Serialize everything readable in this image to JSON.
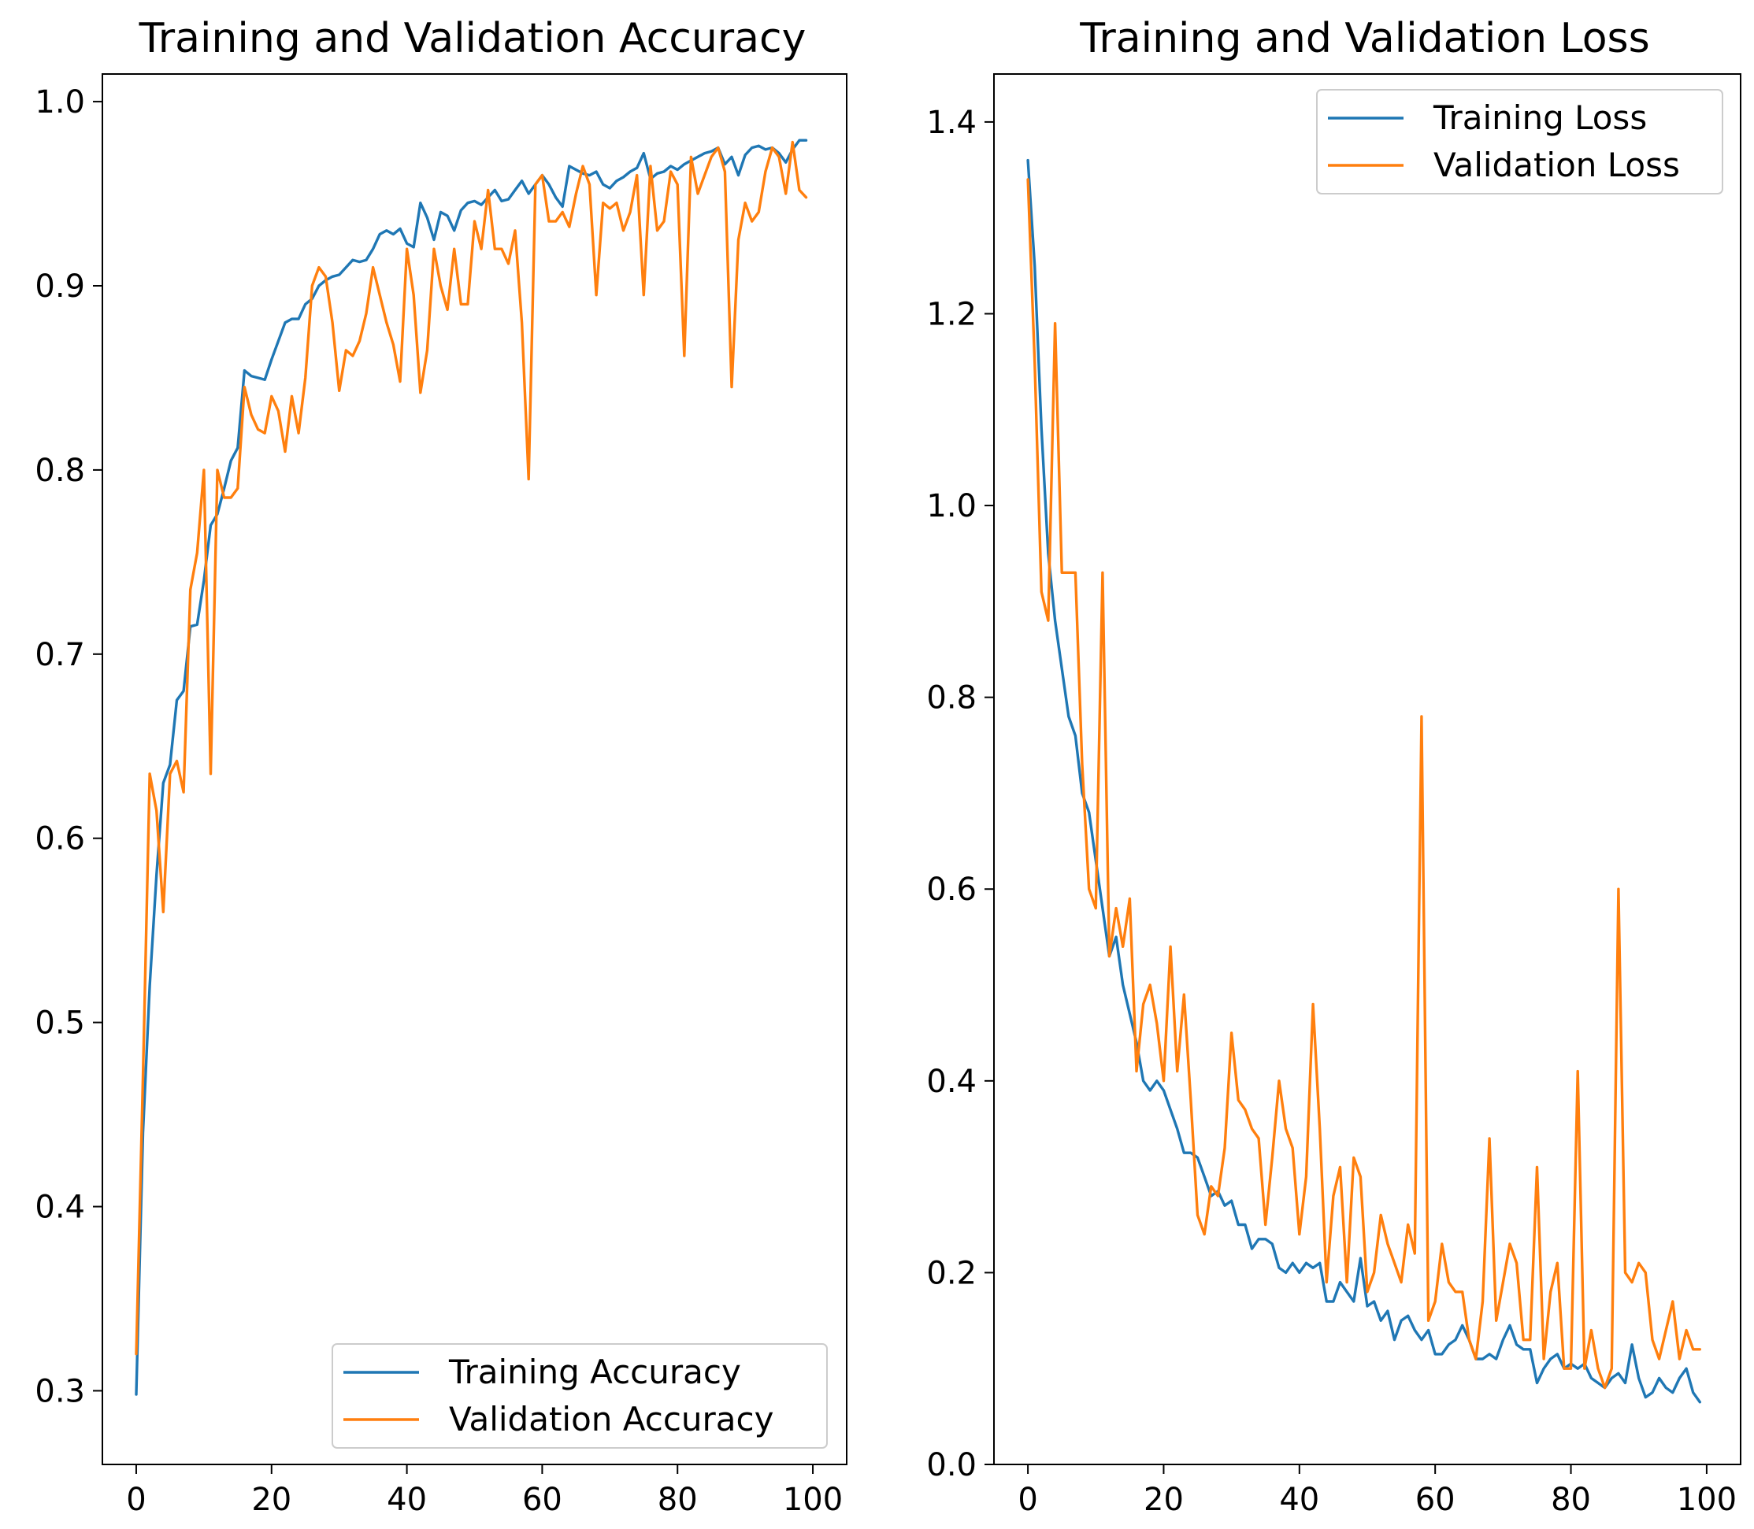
{
  "colors": {
    "training": "#1f77b4",
    "validation": "#ff7f0e"
  },
  "chart_data": [
    {
      "type": "line",
      "title": "Training and Validation Accuracy",
      "xlabel": "",
      "ylabel": "",
      "xlim": [
        -5,
        105
      ],
      "ylim": [
        0.26,
        1.015
      ],
      "xticks": [
        0,
        20,
        40,
        60,
        80,
        100
      ],
      "yticks": [
        0.3,
        0.4,
        0.5,
        0.6,
        0.7,
        0.8,
        0.9,
        1.0
      ],
      "xtick_labels": [
        "0",
        "20",
        "40",
        "60",
        "80",
        "100"
      ],
      "ytick_labels": [
        "0.3",
        "0.4",
        "0.5",
        "0.6",
        "0.7",
        "0.8",
        "0.9",
        "1.0"
      ],
      "grid": false,
      "legend_position": "lower-right",
      "series": [
        {
          "name": "Training Accuracy",
          "color": "#1f77b4",
          "x": [
            0,
            1,
            2,
            3,
            4,
            5,
            6,
            7,
            8,
            9,
            10,
            11,
            12,
            13,
            14,
            15,
            16,
            17,
            18,
            19,
            20,
            21,
            22,
            23,
            24,
            25,
            26,
            27,
            28,
            29,
            30,
            31,
            32,
            33,
            34,
            35,
            36,
            37,
            38,
            39,
            40,
            41,
            42,
            43,
            44,
            45,
            46,
            47,
            48,
            49,
            50,
            51,
            52,
            53,
            54,
            55,
            56,
            57,
            58,
            59,
            60,
            61,
            62,
            63,
            64,
            65,
            66,
            67,
            68,
            69,
            70,
            71,
            72,
            73,
            74,
            75,
            76,
            77,
            78,
            79,
            80,
            81,
            82,
            83,
            84,
            85,
            86,
            87,
            88,
            89,
            90,
            91,
            92,
            93,
            94,
            95,
            96,
            97,
            98,
            99
          ],
          "y": [
            0.298,
            0.44,
            0.52,
            0.58,
            0.63,
            0.64,
            0.675,
            0.68,
            0.715,
            0.716,
            0.74,
            0.77,
            0.776,
            0.79,
            0.805,
            0.812,
            0.854,
            0.851,
            0.85,
            0.849,
            0.86,
            0.87,
            0.88,
            0.882,
            0.882,
            0.89,
            0.893,
            0.9,
            0.903,
            0.905,
            0.906,
            0.91,
            0.914,
            0.913,
            0.914,
            0.92,
            0.928,
            0.93,
            0.928,
            0.931,
            0.923,
            0.921,
            0.945,
            0.937,
            0.925,
            0.94,
            0.938,
            0.93,
            0.941,
            0.945,
            0.946,
            0.944,
            0.948,
            0.952,
            0.946,
            0.947,
            0.952,
            0.957,
            0.95,
            0.955,
            0.96,
            0.955,
            0.948,
            0.943,
            0.965,
            0.963,
            0.961,
            0.96,
            0.962,
            0.955,
            0.953,
            0.957,
            0.959,
            0.962,
            0.964,
            0.972,
            0.958,
            0.961,
            0.962,
            0.965,
            0.963,
            0.966,
            0.968,
            0.97,
            0.972,
            0.973,
            0.975,
            0.966,
            0.97,
            0.96,
            0.971,
            0.975,
            0.976,
            0.974,
            0.975,
            0.972,
            0.967,
            0.974,
            0.979,
            0.979
          ]
        },
        {
          "name": "Validation Accuracy",
          "color": "#ff7f0e",
          "x": [
            0,
            1,
            2,
            3,
            4,
            5,
            6,
            7,
            8,
            9,
            10,
            11,
            12,
            13,
            14,
            15,
            16,
            17,
            18,
            19,
            20,
            21,
            22,
            23,
            24,
            25,
            26,
            27,
            28,
            29,
            30,
            31,
            32,
            33,
            34,
            35,
            36,
            37,
            38,
            39,
            40,
            41,
            42,
            43,
            44,
            45,
            46,
            47,
            48,
            49,
            50,
            51,
            52,
            53,
            54,
            55,
            56,
            57,
            58,
            59,
            60,
            61,
            62,
            63,
            64,
            65,
            66,
            67,
            68,
            69,
            70,
            71,
            72,
            73,
            74,
            75,
            76,
            77,
            78,
            79,
            80,
            81,
            82,
            83,
            84,
            85,
            86,
            87,
            88,
            89,
            90,
            91,
            92,
            93,
            94,
            95,
            96,
            97,
            98,
            99
          ],
          "y": [
            0.32,
            0.47,
            0.635,
            0.615,
            0.56,
            0.635,
            0.642,
            0.625,
            0.735,
            0.755,
            0.8,
            0.635,
            0.8,
            0.785,
            0.785,
            0.79,
            0.845,
            0.83,
            0.822,
            0.82,
            0.84,
            0.832,
            0.81,
            0.84,
            0.82,
            0.85,
            0.9,
            0.91,
            0.905,
            0.88,
            0.843,
            0.865,
            0.862,
            0.87,
            0.885,
            0.91,
            0.895,
            0.88,
            0.868,
            0.848,
            0.92,
            0.895,
            0.842,
            0.865,
            0.92,
            0.9,
            0.887,
            0.92,
            0.89,
            0.89,
            0.935,
            0.92,
            0.952,
            0.92,
            0.92,
            0.912,
            0.93,
            0.88,
            0.795,
            0.955,
            0.96,
            0.935,
            0.935,
            0.94,
            0.932,
            0.95,
            0.965,
            0.955,
            0.895,
            0.945,
            0.942,
            0.945,
            0.93,
            0.94,
            0.96,
            0.895,
            0.965,
            0.93,
            0.935,
            0.962,
            0.955,
            0.862,
            0.97,
            0.95,
            0.96,
            0.97,
            0.975,
            0.962,
            0.845,
            0.925,
            0.945,
            0.935,
            0.94,
            0.962,
            0.975,
            0.97,
            0.95,
            0.978,
            0.952,
            0.948
          ]
        }
      ]
    },
    {
      "type": "line",
      "title": "Training and Validation Loss",
      "xlabel": "",
      "ylabel": "",
      "xlim": [
        -5,
        105
      ],
      "ylim": [
        0.0,
        1.45
      ],
      "xticks": [
        0,
        20,
        40,
        60,
        80,
        100
      ],
      "yticks": [
        0.0,
        0.2,
        0.4,
        0.6,
        0.8,
        1.0,
        1.2,
        1.4
      ],
      "xtick_labels": [
        "0",
        "20",
        "40",
        "60",
        "80",
        "100"
      ],
      "ytick_labels": [
        "0.0",
        "0.2",
        "0.4",
        "0.6",
        "0.8",
        "1.0",
        "1.2",
        "1.4"
      ],
      "grid": false,
      "legend_position": "upper-right",
      "series": [
        {
          "name": "Training Loss",
          "color": "#1f77b4",
          "x": [
            0,
            1,
            2,
            3,
            4,
            5,
            6,
            7,
            8,
            9,
            10,
            11,
            12,
            13,
            14,
            15,
            16,
            17,
            18,
            19,
            20,
            21,
            22,
            23,
            24,
            25,
            26,
            27,
            28,
            29,
            30,
            31,
            32,
            33,
            34,
            35,
            36,
            37,
            38,
            39,
            40,
            41,
            42,
            43,
            44,
            45,
            46,
            47,
            48,
            49,
            50,
            51,
            52,
            53,
            54,
            55,
            56,
            57,
            58,
            59,
            60,
            61,
            62,
            63,
            64,
            65,
            66,
            67,
            68,
            69,
            70,
            71,
            72,
            73,
            74,
            75,
            76,
            77,
            78,
            79,
            80,
            81,
            82,
            83,
            84,
            85,
            86,
            87,
            88,
            89,
            90,
            91,
            92,
            93,
            94,
            95,
            96,
            97,
            98,
            99
          ],
          "y": [
            1.36,
            1.25,
            1.08,
            0.95,
            0.88,
            0.83,
            0.78,
            0.76,
            0.7,
            0.68,
            0.63,
            0.58,
            0.53,
            0.55,
            0.5,
            0.47,
            0.44,
            0.4,
            0.39,
            0.4,
            0.39,
            0.37,
            0.35,
            0.325,
            0.325,
            0.32,
            0.3,
            0.28,
            0.285,
            0.27,
            0.275,
            0.25,
            0.25,
            0.225,
            0.235,
            0.235,
            0.23,
            0.205,
            0.2,
            0.21,
            0.2,
            0.21,
            0.205,
            0.21,
            0.17,
            0.17,
            0.19,
            0.18,
            0.17,
            0.215,
            0.165,
            0.17,
            0.15,
            0.16,
            0.13,
            0.15,
            0.155,
            0.14,
            0.13,
            0.14,
            0.115,
            0.115,
            0.125,
            0.13,
            0.145,
            0.13,
            0.11,
            0.11,
            0.115,
            0.11,
            0.13,
            0.145,
            0.125,
            0.12,
            0.12,
            0.085,
            0.1,
            0.11,
            0.115,
            0.1,
            0.105,
            0.1,
            0.105,
            0.09,
            0.085,
            0.08,
            0.09,
            0.095,
            0.085,
            0.125,
            0.09,
            0.07,
            0.075,
            0.09,
            0.08,
            0.075,
            0.09,
            0.1,
            0.075,
            0.065
          ]
        },
        {
          "name": "Validation Loss",
          "color": "#ff7f0e",
          "x": [
            0,
            1,
            2,
            3,
            4,
            5,
            6,
            7,
            8,
            9,
            10,
            11,
            12,
            13,
            14,
            15,
            16,
            17,
            18,
            19,
            20,
            21,
            22,
            23,
            24,
            25,
            26,
            27,
            28,
            29,
            30,
            31,
            32,
            33,
            34,
            35,
            36,
            37,
            38,
            39,
            40,
            41,
            42,
            43,
            44,
            45,
            46,
            47,
            48,
            49,
            50,
            51,
            52,
            53,
            54,
            55,
            56,
            57,
            58,
            59,
            60,
            61,
            62,
            63,
            64,
            65,
            66,
            67,
            68,
            69,
            70,
            71,
            72,
            73,
            74,
            75,
            76,
            77,
            78,
            79,
            80,
            81,
            82,
            83,
            84,
            85,
            86,
            87,
            88,
            89,
            90,
            91,
            92,
            93,
            94,
            95,
            96,
            97,
            98,
            99
          ],
          "y": [
            1.34,
            1.15,
            0.91,
            0.88,
            1.19,
            0.93,
            0.93,
            0.93,
            0.73,
            0.6,
            0.58,
            0.93,
            0.53,
            0.58,
            0.54,
            0.59,
            0.41,
            0.48,
            0.5,
            0.46,
            0.4,
            0.54,
            0.41,
            0.49,
            0.38,
            0.26,
            0.24,
            0.29,
            0.28,
            0.33,
            0.45,
            0.38,
            0.37,
            0.35,
            0.34,
            0.25,
            0.32,
            0.4,
            0.35,
            0.33,
            0.24,
            0.3,
            0.48,
            0.35,
            0.19,
            0.28,
            0.31,
            0.19,
            0.32,
            0.3,
            0.18,
            0.2,
            0.26,
            0.23,
            0.21,
            0.19,
            0.25,
            0.22,
            0.78,
            0.15,
            0.17,
            0.23,
            0.19,
            0.18,
            0.18,
            0.13,
            0.11,
            0.17,
            0.34,
            0.15,
            0.19,
            0.23,
            0.21,
            0.13,
            0.13,
            0.31,
            0.11,
            0.18,
            0.21,
            0.1,
            0.1,
            0.41,
            0.1,
            0.14,
            0.1,
            0.08,
            0.1,
            0.6,
            0.2,
            0.19,
            0.21,
            0.2,
            0.13,
            0.11,
            0.14,
            0.17,
            0.11,
            0.14,
            0.12,
            0.12
          ]
        }
      ]
    }
  ]
}
